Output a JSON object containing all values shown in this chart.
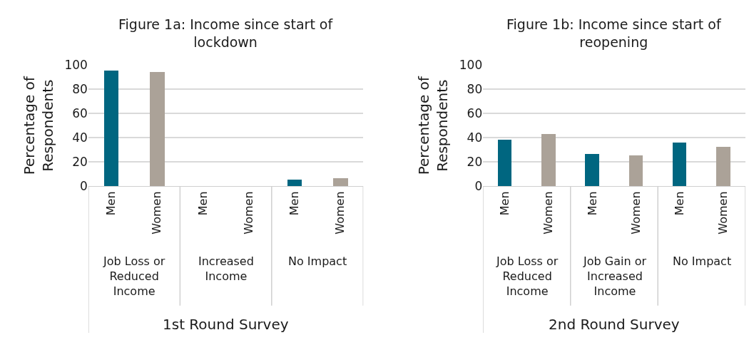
{
  "chart_data": [
    {
      "type": "bar",
      "title": "Figure 1a: Income since start of lockdown",
      "xlabel": "1st Round Survey",
      "ylabel": "Percentage of Respondents",
      "categories": [
        "Men",
        "Women",
        "Men",
        "Women",
        "Men",
        "Women"
      ],
      "values": [
        95,
        94,
        0,
        0,
        5,
        6
      ],
      "colors": [
        "#006680",
        "#aba298",
        "#006680",
        "#aba298",
        "#006680",
        "#aba298"
      ],
      "ylim": [
        0,
        100
      ],
      "yticks": [
        0,
        20,
        40,
        60,
        80,
        100
      ],
      "grid": "y",
      "annotations": [
        "Job Loss or Reduced Income",
        "Increased Income",
        "No Impact"
      ]
    },
    {
      "type": "bar",
      "title": "Figure 1b: Income since start of reopening",
      "xlabel": "2nd Round Survey",
      "ylabel": "Percentage of Respondents",
      "categories": [
        "Men",
        "Women",
        "Men",
        "Women",
        "Men",
        "Women"
      ],
      "values": [
        38,
        43,
        26,
        25,
        36,
        32
      ],
      "colors": [
        "#006680",
        "#aba298",
        "#006680",
        "#aba298",
        "#006680",
        "#aba298"
      ],
      "ylim": [
        0,
        100
      ],
      "yticks": [
        0,
        20,
        40,
        60,
        80,
        100
      ],
      "grid": "y",
      "annotations": [
        "Job Loss or Reduced Income",
        "Job Gain or Increased Income",
        "No Impact"
      ]
    }
  ]
}
